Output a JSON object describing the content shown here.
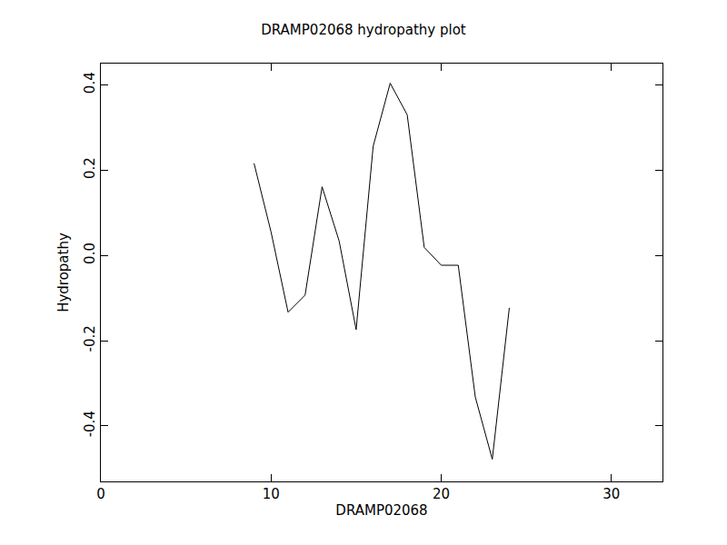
{
  "chart_data": {
    "type": "line",
    "title": "DRAMP02068 hydropathy plot",
    "x_label": "DRAMP02068",
    "y_label": "Hydropathy",
    "x": [
      9,
      10,
      11,
      12,
      13,
      14,
      15,
      16,
      17,
      18,
      19,
      20,
      21,
      22,
      23,
      24
    ],
    "values": [
      0.216,
      0.055,
      -0.133,
      -0.093,
      0.161,
      0.034,
      -0.174,
      0.256,
      0.404,
      0.33,
      0.019,
      -0.023,
      -0.023,
      -0.332,
      -0.478,
      -0.123
    ],
    "color": "#000000",
    "xlim": [
      0,
      33
    ],
    "xticks": [
      0,
      10,
      20,
      30
    ],
    "ylim": [
      -0.53,
      0.45
    ],
    "yticks": [
      -0.4,
      -0.2,
      {
        "value": 0,
        "label": "0.0"
      },
      0.2,
      0.4
    ],
    "grid": false
  }
}
